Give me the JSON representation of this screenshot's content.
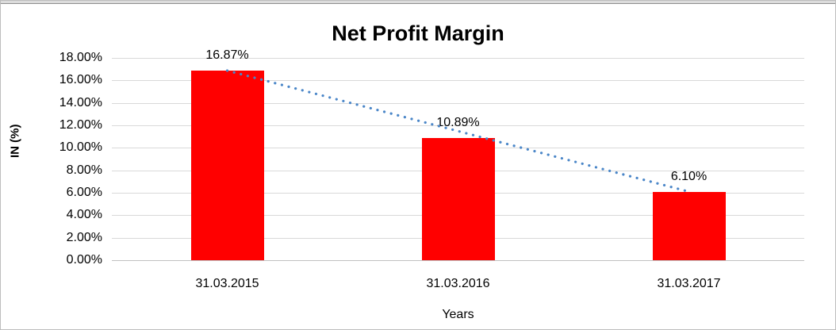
{
  "chart_data": {
    "type": "bar",
    "title": "Net Profit Margin",
    "xlabel": "Years",
    "ylabel": "IN (%)",
    "categories": [
      "31.03.2015",
      "31.03.2016",
      "31.03.2017"
    ],
    "values": [
      16.87,
      10.89,
      6.1
    ],
    "value_labels": [
      "16.87%",
      "10.89%",
      "6.10%"
    ],
    "ylim": [
      0,
      18
    ],
    "ytick_step": 2,
    "ytick_labels": [
      "18.00%",
      "16.00%",
      "14.00%",
      "12.00%",
      "10.00%",
      "8.00%",
      "6.00%",
      "4.00%",
      "2.00%",
      "0.00%"
    ],
    "grid": true,
    "legend": "none",
    "bar_color": "#ff0000",
    "gridline_color": "#d9d9d9",
    "axis_line_color": "#c0c0c0",
    "trendline": {
      "style": "dotted",
      "color": "#4a86c8",
      "from_value": 16.87,
      "to_value": 6.1
    }
  }
}
